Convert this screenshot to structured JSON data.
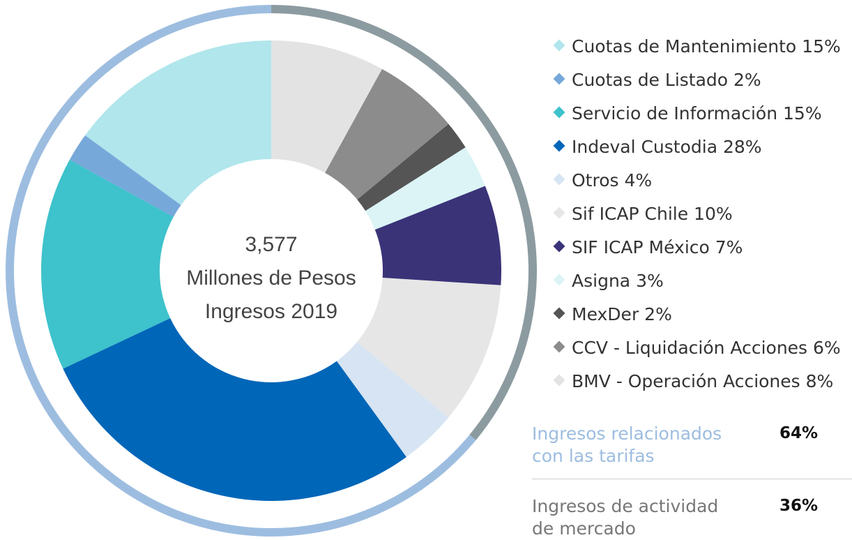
{
  "chart_data": {
    "type": "donut",
    "center_text": [
      "3,577",
      "Millones de Pesos",
      "Ingresos 2019"
    ],
    "categories": [
      "Cuotas de Mantenimiento",
      "Cuotas de Listado",
      "Servicio de Información",
      "Indeval Custodia",
      "Otros",
      "Sif ICAP Chile",
      "SIF ICAP México",
      "Asigna",
      "MexDer",
      "CCV - Liquidación Acciones",
      "BMV - Operación Acciones"
    ],
    "values": [
      15,
      2,
      15,
      28,
      4,
      10,
      7,
      3,
      2,
      6,
      8
    ],
    "value_labels": [
      "15%",
      "2%",
      "15%",
      "28%",
      "4%",
      "10%",
      "7%",
      "3%",
      "2%",
      "6%",
      "8%"
    ],
    "colors": [
      "#b0e6ec",
      "#77a8da",
      "#3ec2cc",
      "#0066b8",
      "#d6e4f3",
      "#e6e6e6",
      "#3a3378",
      "#dcf4f6",
      "#555555",
      "#8c8c8c",
      "#e3e3e3"
    ],
    "summary": [
      {
        "label": "Ingresos relacionados con las tarifas",
        "value": 64,
        "value_label": "64%",
        "color": "#9dbde0"
      },
      {
        "label": "Ingresos de actividad de mercado",
        "value": 36,
        "value_label": "36%",
        "color": "#8c9ba0"
      }
    ]
  }
}
